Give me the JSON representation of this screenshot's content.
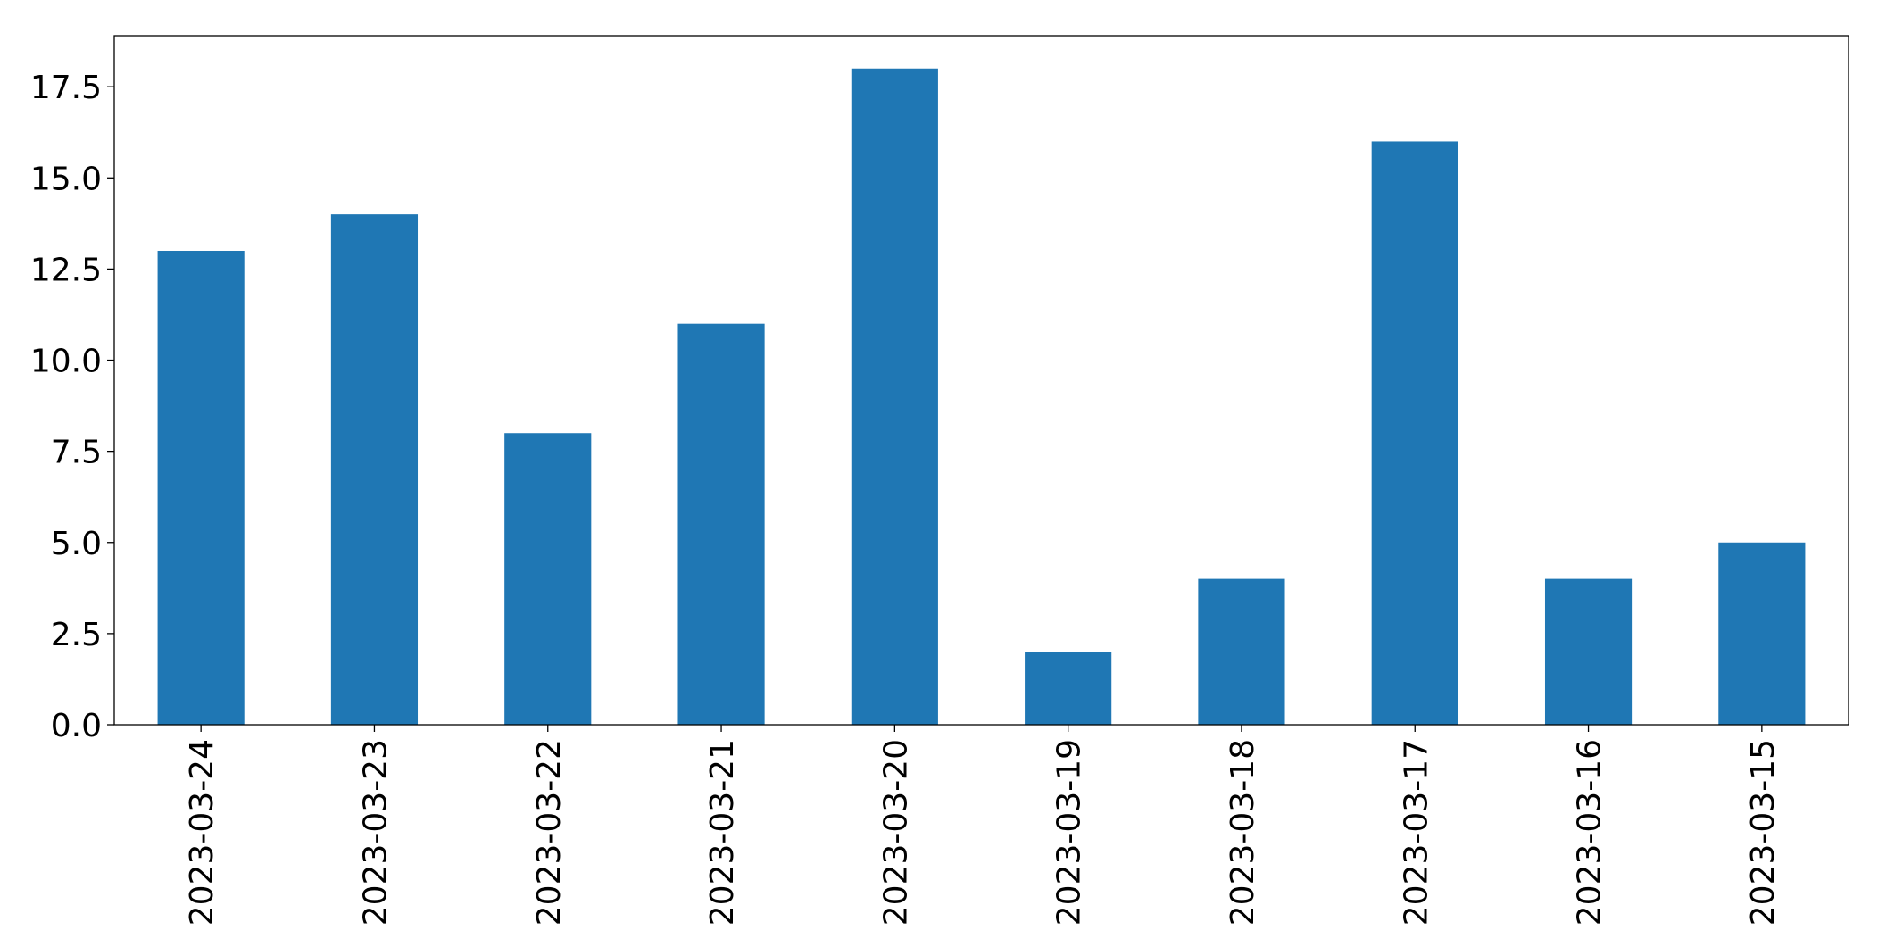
{
  "chart_data": {
    "type": "bar",
    "title": "",
    "xlabel": "",
    "ylabel": "",
    "categories": [
      "2023-03-24",
      "2023-03-23",
      "2023-03-22",
      "2023-03-21",
      "2023-03-20",
      "2023-03-19",
      "2023-03-18",
      "2023-03-17",
      "2023-03-16",
      "2023-03-15"
    ],
    "values": [
      13,
      14,
      8,
      11,
      18,
      2,
      4,
      16,
      4,
      5
    ],
    "ylim": [
      0,
      18.9
    ],
    "yticks": [
      "0.0",
      "2.5",
      "5.0",
      "7.5",
      "10.0",
      "12.5",
      "15.0",
      "17.5"
    ],
    "ytick_values": [
      0,
      2.5,
      5,
      7.5,
      10,
      12.5,
      15,
      17.5
    ],
    "bar_color": "#1f77b4",
    "grid": false,
    "legend": "none"
  }
}
